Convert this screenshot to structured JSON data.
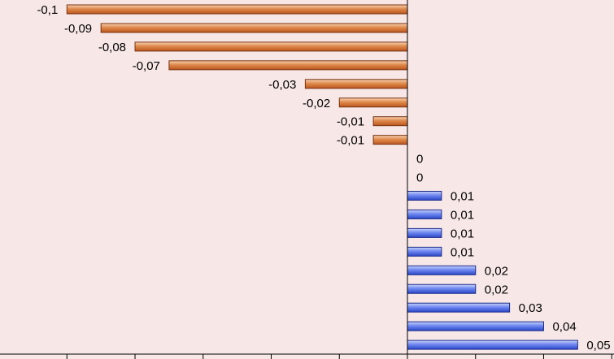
{
  "chart_data": {
    "type": "bar",
    "orientation": "horizontal",
    "values": [
      -0.1,
      -0.09,
      -0.08,
      -0.07,
      -0.03,
      -0.02,
      -0.01,
      -0.01,
      0,
      0,
      0.01,
      0.01,
      0.01,
      0.01,
      0.02,
      0.02,
      0.03,
      0.04,
      0.05
    ],
    "labels": [
      "-0,1",
      "-0,09",
      "-0,08",
      "-0,07",
      "-0,03",
      "-0,02",
      "-0,01",
      "-0,01",
      "0",
      "0",
      "0,01",
      "0,01",
      "0,01",
      "0,01",
      "0,02",
      "0,02",
      "0,03",
      "0,04",
      "0,05"
    ],
    "xlim": [
      -0.12,
      0.06
    ],
    "negative_color": "#d9773a",
    "positive_color": "#3f5fe0",
    "background_color": "#f7e8e7",
    "grid": false
  }
}
